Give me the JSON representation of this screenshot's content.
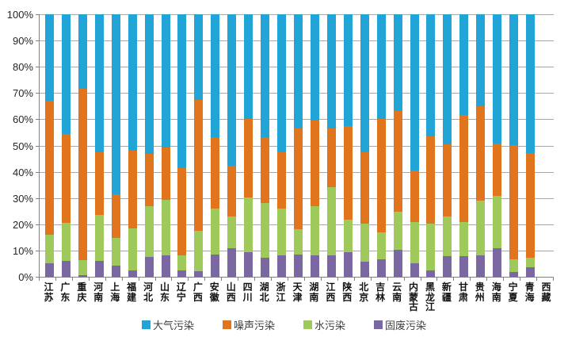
{
  "chart_data": {
    "type": "bar",
    "subtype": "stacked-100",
    "title": "",
    "ylabel": "",
    "xlabel": "",
    "ylim": [
      0,
      100
    ],
    "ytick_labels": [
      "0%",
      "10%",
      "20%",
      "30%",
      "40%",
      "50%",
      "60%",
      "70%",
      "80%",
      "90%",
      "100%"
    ],
    "grid": true,
    "legend_position": "bottom",
    "categories": [
      "江苏",
      "广东",
      "重庆",
      "河南",
      "上海",
      "福建",
      "河北",
      "山东",
      "辽宁",
      "广西",
      "安徽",
      "山西",
      "四川",
      "湖北",
      "浙江",
      "天津",
      "湖南",
      "江西",
      "陕西",
      "北京",
      "吉林",
      "云南",
      "内蒙古",
      "黑龙江",
      "新疆",
      "甘肃",
      "贵州",
      "海南",
      "宁夏",
      "青海",
      "西藏"
    ],
    "series": [
      {
        "name": "固废污染",
        "color": "#7B68A3",
        "values": [
          5,
          6,
          0.7,
          6,
          4.2,
          2.5,
          7.6,
          8.2,
          2.5,
          2.2,
          8.5,
          10.8,
          9.3,
          7.3,
          8.2,
          8.5,
          8.2,
          8.2,
          9.3,
          5.7,
          6.7,
          10.3,
          5.2,
          2.5,
          7.8,
          8,
          8.2,
          11,
          1.7,
          3.7,
          0
        ]
      },
      {
        "name": "水污染",
        "color": "#A0C95C",
        "values": [
          11,
          14.5,
          5.8,
          17.5,
          10.6,
          16,
          19.3,
          21.2,
          5.6,
          15.4,
          17.4,
          12.1,
          20.8,
          20.8,
          17.9,
          9.5,
          18.7,
          25.9,
          12.5,
          14.6,
          10.1,
          14.6,
          15.6,
          17.8,
          15.1,
          12.8,
          20.8,
          19.9,
          5,
          3.6,
          0
        ]
      },
      {
        "name": "噪声污染",
        "color": "#E0751E",
        "values": [
          51,
          34,
          65,
          24,
          16.5,
          29.5,
          20,
          19.8,
          33.4,
          49.8,
          27.2,
          19.3,
          30,
          25.2,
          21.4,
          38.4,
          32.7,
          22.5,
          35.5,
          27.2,
          43.3,
          38.2,
          19.7,
          33.3,
          27.6,
          40.8,
          36,
          19.9,
          43.4,
          39.9,
          0
        ]
      },
      {
        "name": "大气污染",
        "color": "#21A5D6",
        "values": [
          33,
          45.5,
          28.5,
          52.5,
          68.7,
          52,
          53.1,
          50.8,
          58.5,
          32.6,
          46.9,
          57.8,
          39.9,
          46.7,
          52.5,
          43.6,
          40.4,
          43.4,
          42.7,
          52.5,
          39.9,
          36.9,
          59.5,
          46.4,
          49.5,
          38.4,
          35,
          49.2,
          49.9,
          52.8,
          0
        ]
      }
    ],
    "legend_order": [
      "大气污染",
      "噪声污染",
      "水污染",
      "固废污染"
    ],
    "axis_color": "#808080",
    "grid_color": "#a8a8a8"
  }
}
